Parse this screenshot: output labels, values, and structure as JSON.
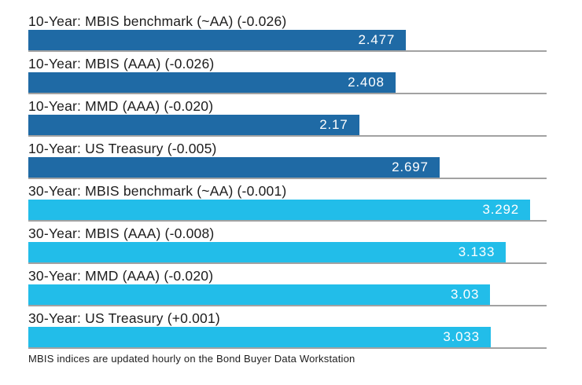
{
  "chart_data": {
    "type": "bar",
    "orientation": "horizontal",
    "title": "",
    "xlabel": "",
    "ylabel": "",
    "xlim": [
      0,
      3.4
    ],
    "grid": false,
    "legend": "none",
    "colors": {
      "ten_year": "#1f6aa5",
      "thirty_year": "#22bde9"
    },
    "baseline_color": "#a2a2a2",
    "value_label_color": "#ffffff",
    "bars": [
      {
        "label": "10-Year: MBIS benchmark (~AA) (-0.026)",
        "value": 2.477,
        "display": "2.477",
        "group": "ten_year"
      },
      {
        "label": "10-Year: MBIS (AAA) (-0.026)",
        "value": 2.408,
        "display": "2.408",
        "group": "ten_year"
      },
      {
        "label": "10-Year: MMD (AAA) (-0.020)",
        "value": 2.17,
        "display": "2.17",
        "group": "ten_year"
      },
      {
        "label": "10-Year: US Treasury (-0.005)",
        "value": 2.697,
        "display": "2.697",
        "group": "ten_year"
      },
      {
        "label": "30-Year: MBIS benchmark (~AA) (-0.001)",
        "value": 3.292,
        "display": "3.292",
        "group": "thirty_year"
      },
      {
        "label": "30-Year: MBIS (AAA) (-0.008)",
        "value": 3.133,
        "display": "3.133",
        "group": "thirty_year"
      },
      {
        "label": "30-Year: MMD (AAA) (-0.020)",
        "value": 3.03,
        "display": "3.03",
        "group": "thirty_year"
      },
      {
        "label": "30-Year: US Treasury (+0.001)",
        "value": 3.033,
        "display": "3.033",
        "group": "thirty_year"
      }
    ],
    "footnote": "MBIS indices are updated hourly on the Bond Buyer Data Workstation"
  }
}
